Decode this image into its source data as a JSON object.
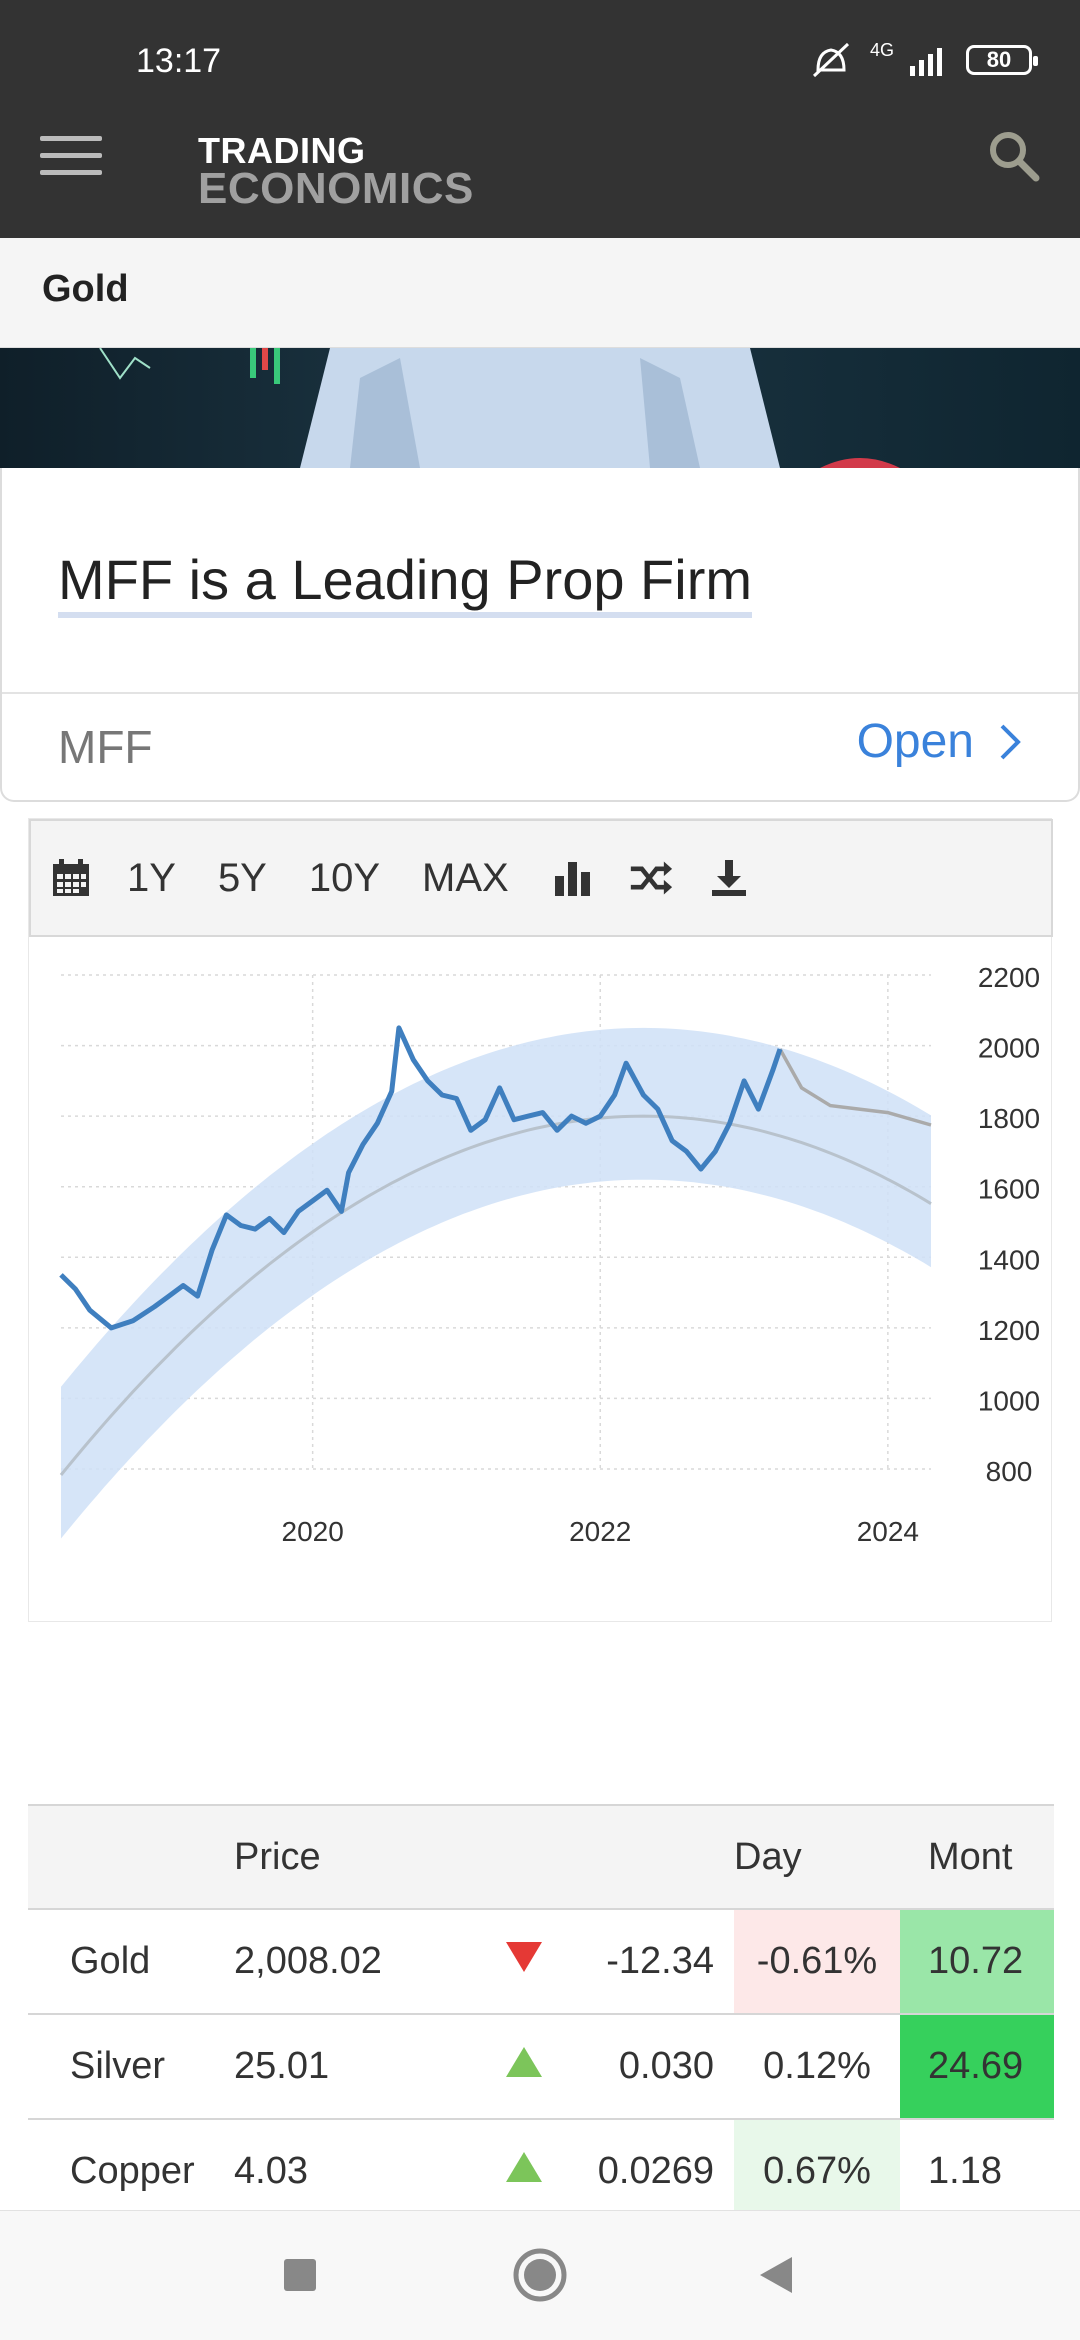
{
  "status_bar": {
    "time": "13:17",
    "network": "4G",
    "battery": "80"
  },
  "app_bar": {
    "brand_line1": "TRADING",
    "brand_line2": "ECONOMICS"
  },
  "section": {
    "title": "Gold"
  },
  "ad": {
    "headline": "MFF is a Leading Prop Firm",
    "advertiser": "MFF",
    "cta": "Open"
  },
  "chart_toolbar": {
    "ranges": [
      "1Y",
      "5Y",
      "10Y",
      "MAX"
    ]
  },
  "chart_data": {
    "type": "line",
    "title": "",
    "xlabel": "",
    "ylabel": "",
    "y_ticks": [
      800,
      1000,
      1200,
      1400,
      1600,
      1800,
      2000,
      2200
    ],
    "x_ticks": [
      "2020",
      "2022",
      "2024"
    ],
    "ylim": [
      800,
      2200
    ],
    "grid": true,
    "colors": {
      "price": "#3f7fbf",
      "forecast": "#aaaaaa",
      "band": "#cfe0f7",
      "trend": "#b8c2cc"
    },
    "series": [
      {
        "x": [
          2018.25,
          2018.35,
          2018.45,
          2018.6,
          2018.75,
          2018.9,
          2019.0,
          2019.1,
          2019.2,
          2019.3,
          2019.4,
          2019.5,
          2019.6,
          2019.7,
          2019.8,
          2019.9,
          2020.0,
          2020.1,
          2020.2,
          2020.25,
          2020.35,
          2020.45,
          2020.55,
          2020.6,
          2020.7,
          2020.8,
          2020.9,
          2021.0,
          2021.1,
          2021.2,
          2021.3,
          2021.4,
          2021.5,
          2021.6,
          2021.7,
          2021.8,
          2021.9,
          2022.0,
          2022.1,
          2022.18,
          2022.3,
          2022.4,
          2022.5,
          2022.6,
          2022.7,
          2022.8,
          2022.9,
          2023.0,
          2023.1,
          2023.2,
          2023.25
        ],
        "y": [
          1350,
          1310,
          1250,
          1200,
          1220,
          1260,
          1290,
          1320,
          1290,
          1420,
          1520,
          1490,
          1480,
          1510,
          1470,
          1530,
          1560,
          1590,
          1530,
          1640,
          1720,
          1780,
          1870,
          2050,
          1960,
          1900,
          1860,
          1850,
          1760,
          1790,
          1880,
          1790,
          1800,
          1810,
          1760,
          1800,
          1780,
          1800,
          1860,
          1950,
          1860,
          1820,
          1730,
          1700,
          1650,
          1700,
          1780,
          1900,
          1820,
          1930,
          1990
        ]
      },
      {
        "x": [
          2023.25,
          2023.4,
          2023.6,
          2023.8,
          2024.0,
          2024.3
        ],
        "y": [
          1990,
          1880,
          1830,
          1820,
          1810,
          1775
        ]
      }
    ]
  },
  "market_table": {
    "headers": {
      "name": "",
      "price": "Price",
      "change": "",
      "day": "Day",
      "month": "Mont"
    },
    "rows": [
      {
        "name": "Gold",
        "price": "2,008.02",
        "direction": "down",
        "change": "-12.34",
        "day": "-0.61%",
        "month": "10.72"
      },
      {
        "name": "Silver",
        "price": "25.01",
        "direction": "up",
        "change": "0.030",
        "day": "0.12%",
        "month": "24.69"
      },
      {
        "name": "Copper",
        "price": "4.03",
        "direction": "up",
        "change": "0.0269",
        "day": "0.67%",
        "month": "1.18"
      }
    ]
  }
}
